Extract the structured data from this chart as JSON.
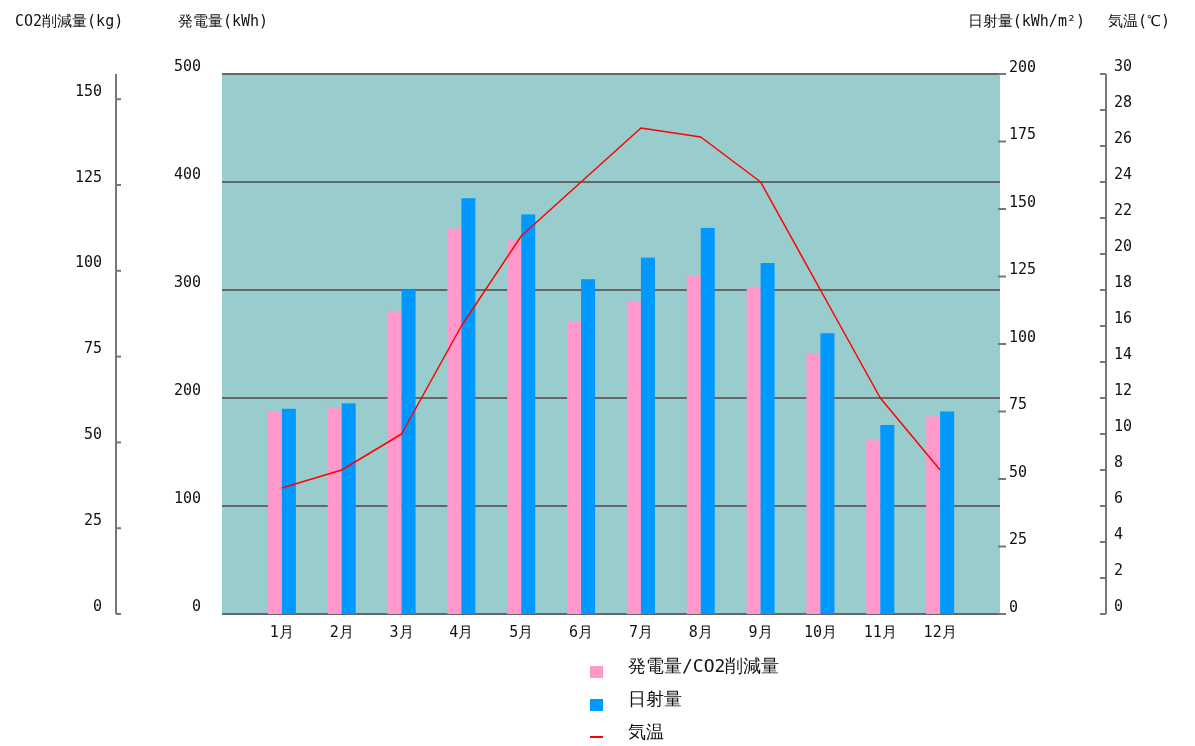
{
  "chart_data": {
    "type": "bar",
    "categories": [
      "1月",
      "2月",
      "3月",
      "4月",
      "5月",
      "6月",
      "7月",
      "8月",
      "9月",
      "10月",
      "11月",
      "12月"
    ],
    "series": [
      {
        "name": "発電量/CO2削減量",
        "axis": "y",
        "color": "#ff99cc",
        "values": [
          187,
          191,
          280,
          357,
          346,
          271,
          289,
          313,
          303,
          241,
          161,
          183
        ]
      },
      {
        "name": "日射量",
        "axis": "y2",
        "color": "#0099ff",
        "values": [
          76,
          78,
          120,
          154,
          148,
          124,
          132,
          143,
          130,
          104,
          70,
          75
        ]
      },
      {
        "name": "気温",
        "type": "line",
        "axis": "y3",
        "color": "#ff0000",
        "values": [
          7,
          8,
          10,
          16,
          21,
          24,
          27,
          26.5,
          24,
          18,
          12,
          8
        ]
      }
    ],
    "ylabel": "発電量(kWh)",
    "ylim": [
      0,
      500
    ],
    "yticks": [
      0,
      100,
      200,
      300,
      400,
      500
    ],
    "y2label": "日射量(kWh/m²)",
    "y2lim": [
      0,
      200
    ],
    "y2ticks": [
      0,
      25,
      50,
      75,
      100,
      125,
      150,
      175,
      200
    ],
    "y3label": "気温(℃)",
    "y3lim": [
      0,
      30
    ],
    "y3ticks": [
      0,
      2,
      4,
      6,
      8,
      10,
      12,
      14,
      16,
      18,
      20,
      22,
      24,
      26,
      28,
      30
    ],
    "annotations": [
      "CO2削減量(kg)",
      "0",
      "25",
      "50",
      "75",
      "100",
      "125",
      "150"
    ],
    "grid": "y",
    "legend": "bottom"
  }
}
